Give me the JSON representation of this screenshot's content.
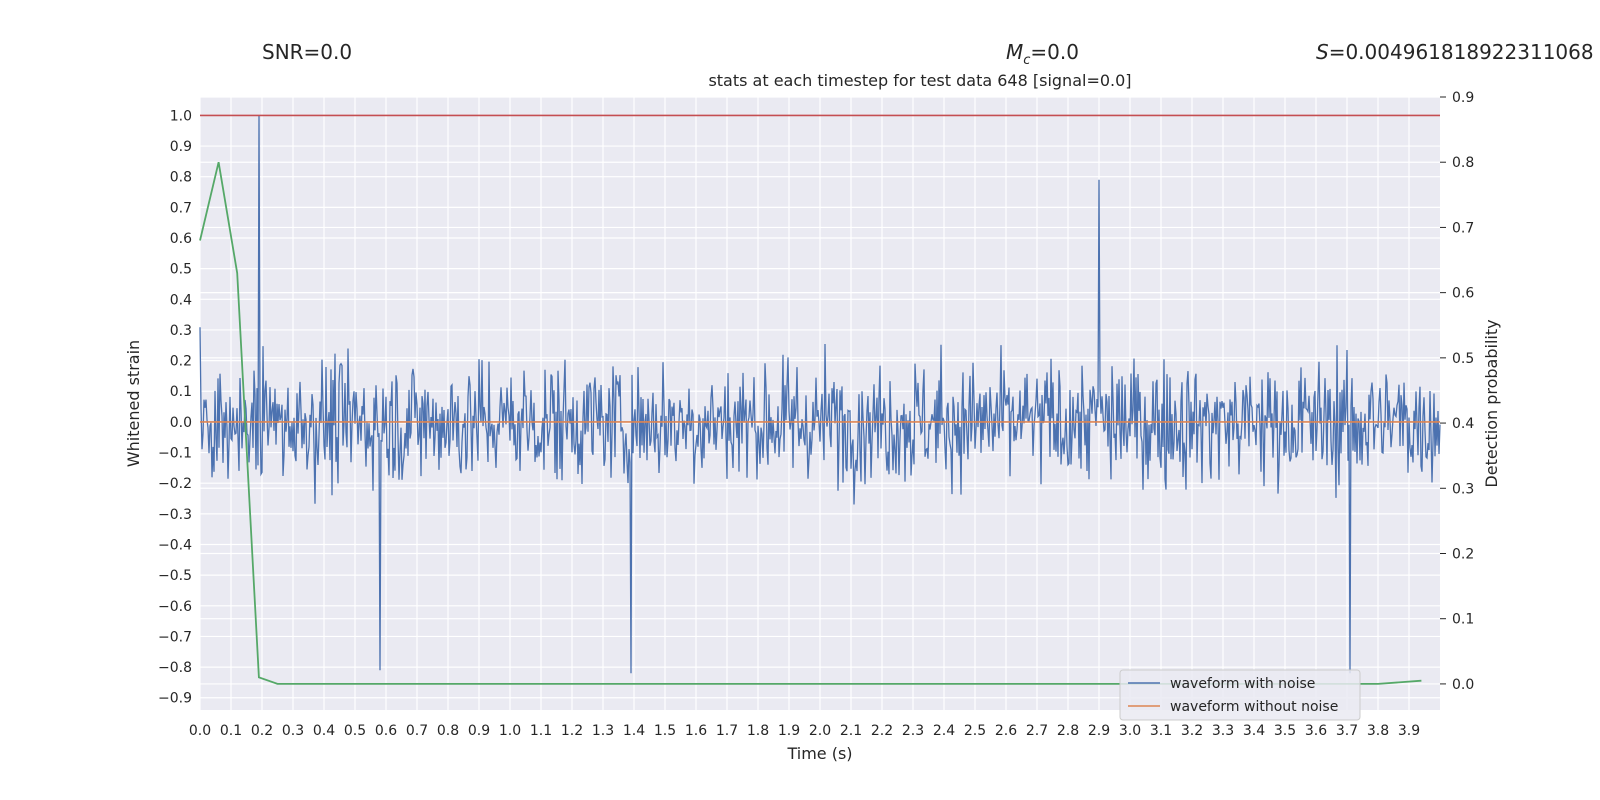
{
  "header": {
    "snr_text": "SNR=0.0",
    "mc_symbol": "M",
    "mc_sub": "c",
    "mc_value": "=0.0",
    "s_symbol": "S",
    "s_value": "=0.004961818922311068"
  },
  "chart_data": {
    "type": "line",
    "title": "stats at each timestep for test data 648 [signal=0.0]",
    "xlabel": "Time (s)",
    "ylabel": "Whitened strain",
    "y2label": "Detection probability",
    "xlim": [
      0.0,
      4.0
    ],
    "ylim": [
      -0.94,
      1.06
    ],
    "y2lim": [
      -0.04,
      0.9
    ],
    "xticks": [
      "0.0",
      "0.1",
      "0.2",
      "0.3",
      "0.4",
      "0.5",
      "0.6",
      "0.7",
      "0.8",
      "0.9",
      "1.0",
      "1.1",
      "1.2",
      "1.3",
      "1.4",
      "1.5",
      "1.6",
      "1.7",
      "1.8",
      "1.9",
      "2.0",
      "2.1",
      "2.2",
      "2.3",
      "2.4",
      "2.5",
      "2.6",
      "2.7",
      "2.8",
      "2.9",
      "3.0",
      "3.1",
      "3.2",
      "3.3",
      "3.4",
      "3.5",
      "3.6",
      "3.7",
      "3.8",
      "3.9"
    ],
    "yticks": [
      "1.0",
      "0.9",
      "0.8",
      "0.7",
      "0.6",
      "0.5",
      "0.4",
      "0.3",
      "0.2",
      "0.1",
      "0.0",
      "−0.1",
      "−0.2",
      "−0.3",
      "−0.4",
      "−0.5",
      "−0.6",
      "−0.7",
      "−0.8",
      "−0.9"
    ],
    "y2ticks": [
      "0.9",
      "0.8",
      "0.7",
      "0.6",
      "0.5",
      "0.4",
      "0.3",
      "0.2",
      "0.1",
      "0.0"
    ],
    "grid": true,
    "legend_position": "lower-right",
    "threshold_line": {
      "value": 1.0,
      "color": "#c44e52"
    },
    "series": [
      {
        "name": "waveform with noise",
        "color": "#4c72b0",
        "axis": "left",
        "peak_samples": [
          {
            "x": 0.19,
            "y": 1.0
          },
          {
            "x": 2.9,
            "y": 0.79
          },
          {
            "x": 3.71,
            "y": -0.82
          },
          {
            "x": 1.39,
            "y": -0.82
          },
          {
            "x": 0.58,
            "y": -0.81
          }
        ]
      },
      {
        "name": "waveform without noise",
        "color": "#dd8452",
        "axis": "left",
        "x": [
          0.0,
          4.0
        ],
        "y": [
          0.0,
          0.0
        ]
      },
      {
        "color": "#55a868",
        "axis": "right",
        "x": [
          0.0,
          0.06,
          0.12,
          0.19,
          0.25,
          0.5,
          1.0,
          2.0,
          3.0,
          3.8,
          3.94
        ],
        "y": [
          0.68,
          0.8,
          0.63,
          0.01,
          0.0,
          0.0,
          0.0,
          0.0,
          0.0,
          0.0,
          0.005
        ]
      }
    ]
  }
}
